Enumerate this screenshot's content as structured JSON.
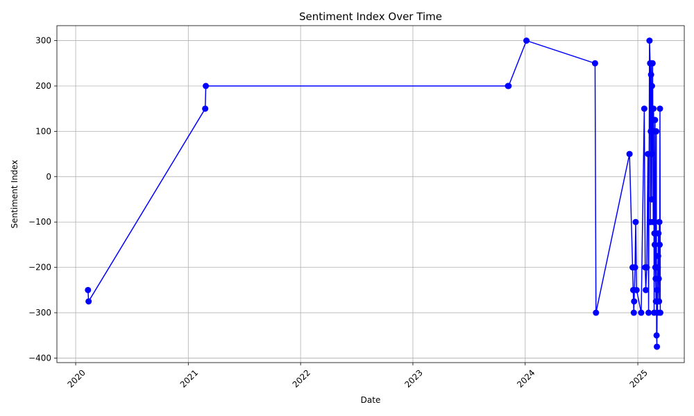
{
  "chart_data": {
    "type": "line",
    "title": "Sentiment Index Over Time",
    "xlabel": "Date",
    "ylabel": "Sentiment Index",
    "x_axis_kind": "date",
    "x_ticks": [
      "2020",
      "2021",
      "2022",
      "2023",
      "2024",
      "2025"
    ],
    "y_ticks": [
      -400,
      -300,
      -200,
      -100,
      0,
      100,
      200,
      300
    ],
    "xlim": [
      "2019-11-01",
      "2025-06-01"
    ],
    "ylim": [
      -410,
      333
    ],
    "grid": true,
    "line_color": "#0000ff",
    "marker": "circle",
    "series": [
      {
        "x": [
          "2020-02-10",
          "2020-02-12",
          "2021-02-25",
          "2021-02-27",
          "2023-11-06",
          "2023-11-08",
          "2024-01-05",
          "2024-08-15",
          "2024-08-18",
          "2024-12-05",
          "2024-12-15",
          "2024-12-17",
          "2024-12-19",
          "2024-12-20",
          "2024-12-23",
          "2024-12-25",
          "2024-12-28",
          "2025-01-12",
          "2025-01-22",
          "2025-01-25",
          "2025-01-27",
          "2025-01-30",
          "2025-02-03",
          "2025-02-05",
          "2025-02-08",
          "2025-02-10",
          "2025-02-11",
          "2025-02-12",
          "2025-02-13",
          "2025-02-14",
          "2025-02-15",
          "2025-02-16",
          "2025-02-17",
          "2025-02-18",
          "2025-02-19",
          "2025-02-20",
          "2025-02-21",
          "2025-02-22",
          "2025-02-23",
          "2025-02-24",
          "2025-02-25",
          "2025-02-26",
          "2025-02-27",
          "2025-02-28",
          "2025-03-01",
          "2025-03-02",
          "2025-03-03",
          "2025-03-04",
          "2025-03-05",
          "2025-03-06",
          "2025-03-07",
          "2025-03-08",
          "2025-03-09",
          "2025-03-10",
          "2025-03-11",
          "2025-03-12",
          "2025-03-13",
          "2025-03-14",
          "2025-03-15"
        ],
        "y": [
          -250,
          -275,
          150,
          200,
          200,
          200,
          300,
          250,
          -300,
          50,
          -200,
          -250,
          -300,
          -275,
          -200,
          -100,
          -250,
          -300,
          150,
          -200,
          -250,
          -200,
          50,
          -300,
          300,
          250,
          -100,
          100,
          225,
          250,
          -50,
          200,
          50,
          250,
          100,
          -100,
          150,
          100,
          -300,
          -125,
          -150,
          125,
          -200,
          -225,
          -275,
          100,
          -350,
          -375,
          -250,
          -300,
          -200,
          -175,
          -125,
          -225,
          -275,
          -100,
          -150,
          150,
          -300
        ]
      }
    ]
  }
}
